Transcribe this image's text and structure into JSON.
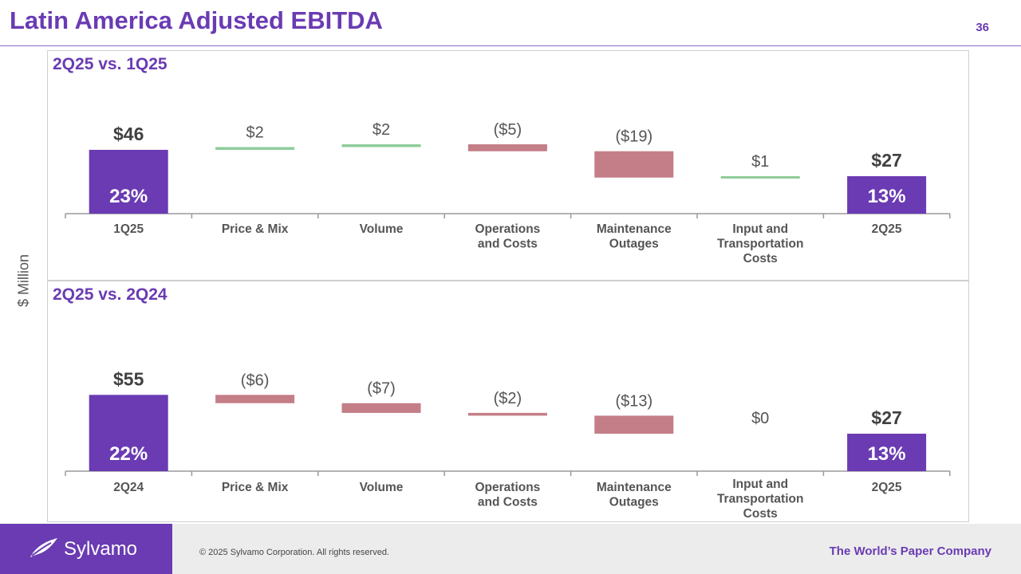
{
  "title": "Latin America Adjusted EBITDA",
  "page_number": "36",
  "y_axis_label": "$ Million",
  "colors": {
    "start_end": "#6a3bb3",
    "increase": "#8fcc9a",
    "decrease": "#c47e87",
    "label": "#555555",
    "accent": "#6a3bb3"
  },
  "footer": {
    "logo": "Sylvamo",
    "copyright": "© 2025 Sylvamo Corporation. All rights reserved.",
    "tagline": "The World’s Paper Company"
  },
  "chart_data": [
    {
      "type": "waterfall",
      "title": "2Q25 vs. 1Q25",
      "categories": [
        "1Q25",
        "Price & Mix",
        "Volume",
        "Operations and Costs",
        "Maintenance Outages",
        "Input and Transportation Costs",
        "2Q25"
      ],
      "category_lines": [
        [
          "1Q25"
        ],
        [
          "Price & Mix"
        ],
        [
          "Volume"
        ],
        [
          "Operations",
          "and Costs"
        ],
        [
          "Maintenance",
          "Outages"
        ],
        [
          "Input and",
          "Transportation",
          "Costs"
        ],
        [
          "2Q25"
        ]
      ],
      "values": [
        46,
        2,
        2,
        -5,
        -19,
        1,
        27
      ],
      "kinds": [
        "total",
        "delta",
        "delta",
        "delta",
        "delta",
        "delta",
        "total"
      ],
      "value_labels": [
        "$46",
        "$2",
        "$2",
        "($5)",
        "($19)",
        "$1",
        "$27"
      ],
      "margin_labels": [
        "23%",
        "",
        "",
        "",
        "",
        "",
        "13%"
      ],
      "ylabel": "$ Million",
      "ylim": [
        0,
        50
      ]
    },
    {
      "type": "waterfall",
      "title": "2Q25 vs. 2Q24",
      "categories": [
        "2Q24",
        "Price & Mix",
        "Volume",
        "Operations and Costs",
        "Maintenance Outages",
        "Input and Transportation Costs",
        "2Q25"
      ],
      "category_lines": [
        [
          "2Q24"
        ],
        [
          "Price & Mix"
        ],
        [
          "Volume"
        ],
        [
          "Operations",
          "and Costs"
        ],
        [
          "Maintenance",
          "Outages"
        ],
        [
          "Input and",
          "Transportation",
          "Costs"
        ],
        [
          "2Q25"
        ]
      ],
      "values": [
        55,
        -6,
        -7,
        -2,
        -13,
        0,
        27
      ],
      "kinds": [
        "total",
        "delta",
        "delta",
        "delta",
        "delta",
        "delta",
        "total"
      ],
      "value_labels": [
        "$55",
        "($6)",
        "($7)",
        "($2)",
        "($13)",
        "$0",
        "$27"
      ],
      "margin_labels": [
        "22%",
        "",
        "",
        "",
        "",
        "",
        "13%"
      ],
      "ylabel": "$ Million",
      "ylim": [
        0,
        60
      ]
    }
  ]
}
